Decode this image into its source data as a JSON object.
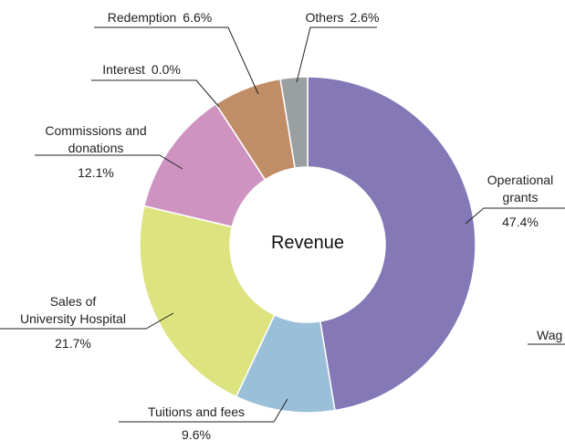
{
  "chart_data": {
    "type": "donut",
    "center_label": "Revenue",
    "categories": [
      "Operational\ngrants",
      "Tuitions and fees",
      "Sales of\nUniversity Hospital",
      "Commissions and\ndonations",
      "Interest",
      "Redemption",
      "Others"
    ],
    "values": [
      47.4,
      9.6,
      21.7,
      12.1,
      0.0,
      6.6,
      2.6
    ],
    "value_labels": [
      "47.4%",
      "9.6%",
      "21.7%",
      "12.1%",
      "0.0%",
      "6.6%",
      "2.6%"
    ],
    "colors": [
      "#8478b6",
      "#99bfd9",
      "#dce37f",
      "#cf93c1",
      "#e0c090",
      "#c18d67",
      "#9aa0a2"
    ],
    "annotations": [
      "Wag"
    ]
  }
}
